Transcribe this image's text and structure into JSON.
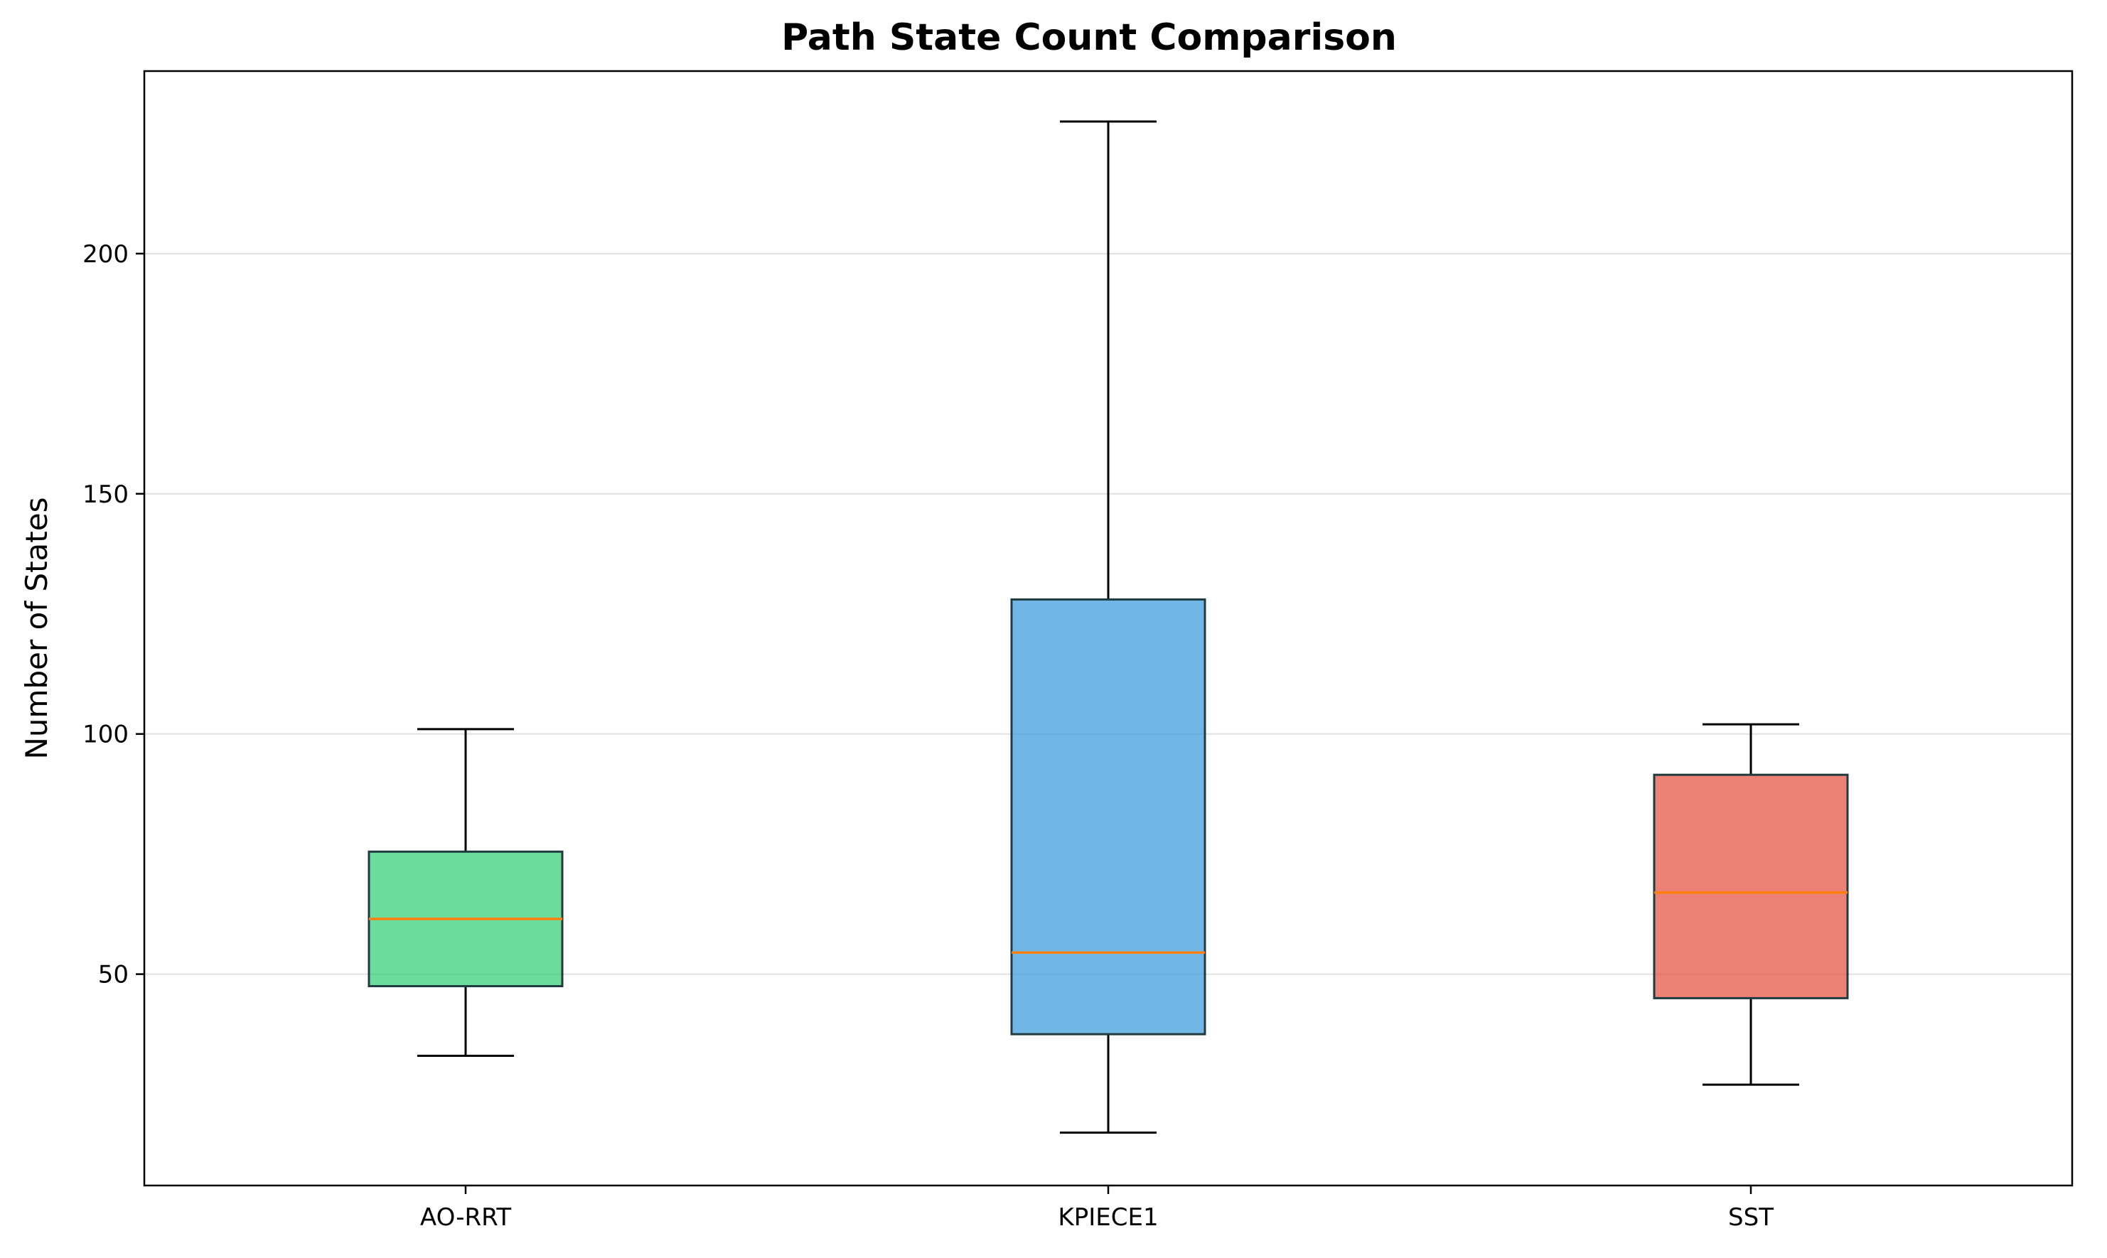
{
  "chart_data": {
    "type": "box",
    "title": "Path State Count Comparison",
    "xlabel": "",
    "ylabel": "Number of States",
    "ylim": [
      6,
      238
    ],
    "yticks": [
      50,
      100,
      150,
      200
    ],
    "grid": "y",
    "categories": [
      "AO-RRT",
      "KPIECE1",
      "SST"
    ],
    "series": [
      {
        "category": "AO-RRT",
        "whislo": 33,
        "q1": 47.5,
        "med": 61.5,
        "q3": 75.5,
        "whishi": 101,
        "color": "#2ecc71"
      },
      {
        "category": "KPIECE1",
        "whislo": 17,
        "q1": 37.5,
        "med": 54.5,
        "q3": 128,
        "whishi": 227.5,
        "color": "#3498db"
      },
      {
        "category": "SST",
        "whislo": 27,
        "q1": 45,
        "med": 67,
        "q3": 91.5,
        "whishi": 102,
        "color": "#e74c3c"
      }
    ],
    "box_alpha": 0.7,
    "median_color": "#ff7f0e"
  }
}
